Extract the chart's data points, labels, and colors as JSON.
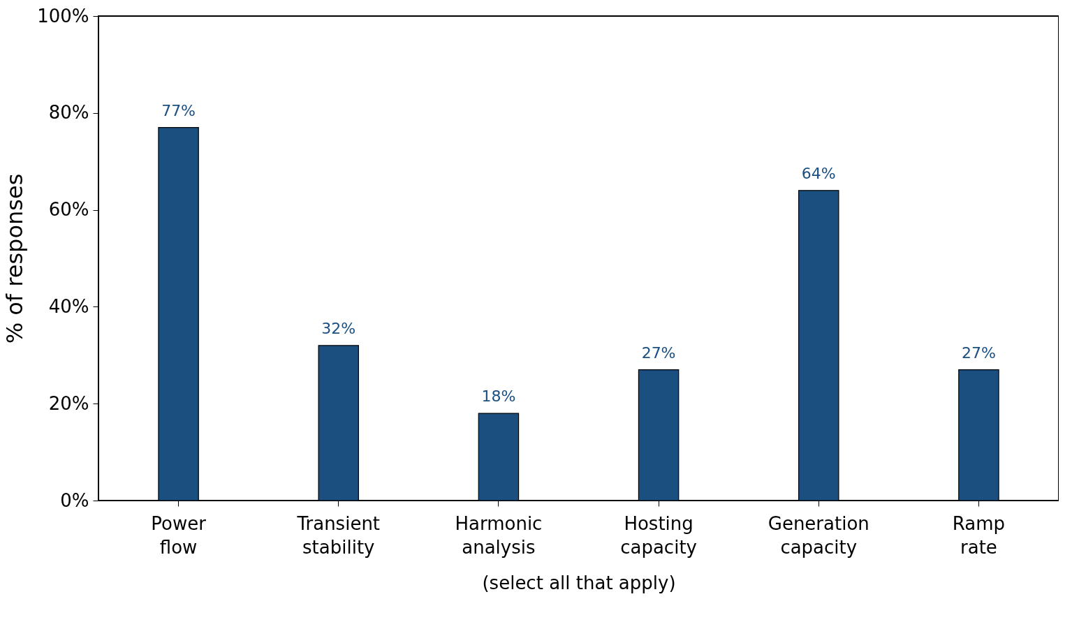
{
  "chart_data": {
    "type": "bar",
    "categories": [
      "Power flow",
      "Transient stability",
      "Harmonic analysis",
      "Hosting capacity",
      "Generation capacity",
      "Ramp rate"
    ],
    "values": [
      77,
      32,
      18,
      27,
      64,
      27
    ],
    "value_labels": [
      "77%",
      "32%",
      "18%",
      "27%",
      "64%",
      "27%"
    ],
    "color": "#1a4f80",
    "xlabel": "(select all that apply)",
    "ylabel": "% of responses",
    "ylim": [
      0,
      100
    ],
    "yticks": [
      {
        "value": 0,
        "label": "0%"
      },
      {
        "value": 20,
        "label": "20%"
      },
      {
        "value": 40,
        "label": "40%"
      },
      {
        "value": 60,
        "label": "60%"
      },
      {
        "value": 80,
        "label": "80%"
      },
      {
        "value": 100,
        "label": "100%"
      }
    ],
    "grid": false
  }
}
